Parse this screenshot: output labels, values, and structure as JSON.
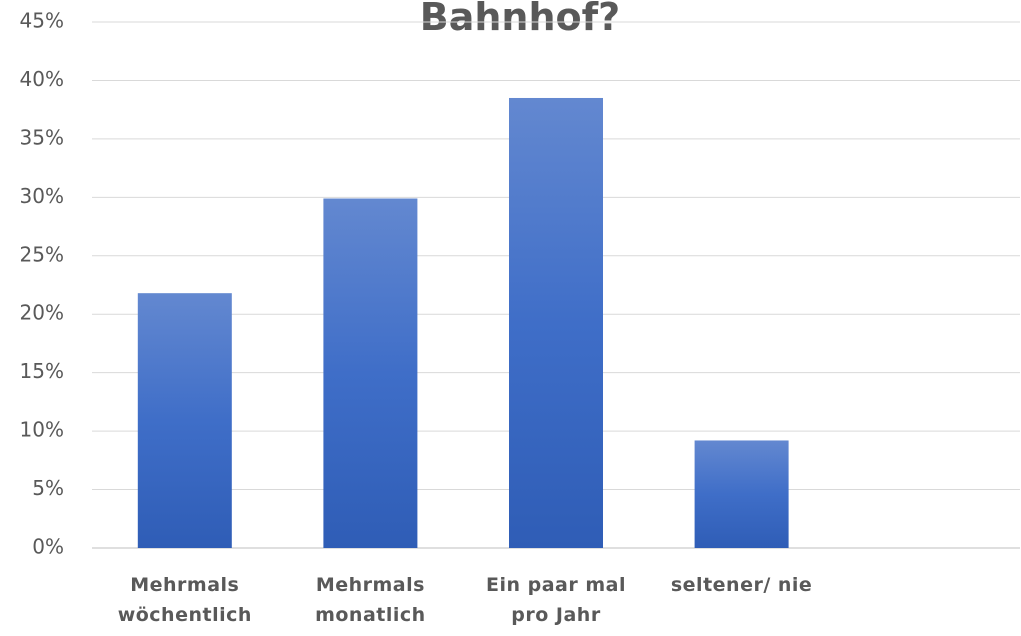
{
  "chart_data": {
    "type": "bar",
    "title": "Bahnhof?",
    "categories": [
      "Mehrmals wöchentlich",
      "Mehrmals monatlich",
      "Ein paar mal pro Jahr",
      "seltener/ nie",
      null
    ],
    "values": [
      21.8,
      29.9,
      38.5,
      9.2,
      null
    ],
    "color": "#4472c4",
    "ylim": [
      0,
      45
    ],
    "yticks": [
      {
        "value": 0,
        "label": "0%"
      },
      {
        "value": 5,
        "label": "5%"
      },
      {
        "value": 10,
        "label": "10%"
      },
      {
        "value": 15,
        "label": "15%"
      },
      {
        "value": 20,
        "label": "20%"
      },
      {
        "value": 25,
        "label": "25%"
      },
      {
        "value": 30,
        "label": "30%"
      },
      {
        "value": 35,
        "label": "35%"
      },
      {
        "value": 40,
        "label": "40%"
      },
      {
        "value": 45,
        "label": "45%"
      }
    ],
    "grid": true
  }
}
